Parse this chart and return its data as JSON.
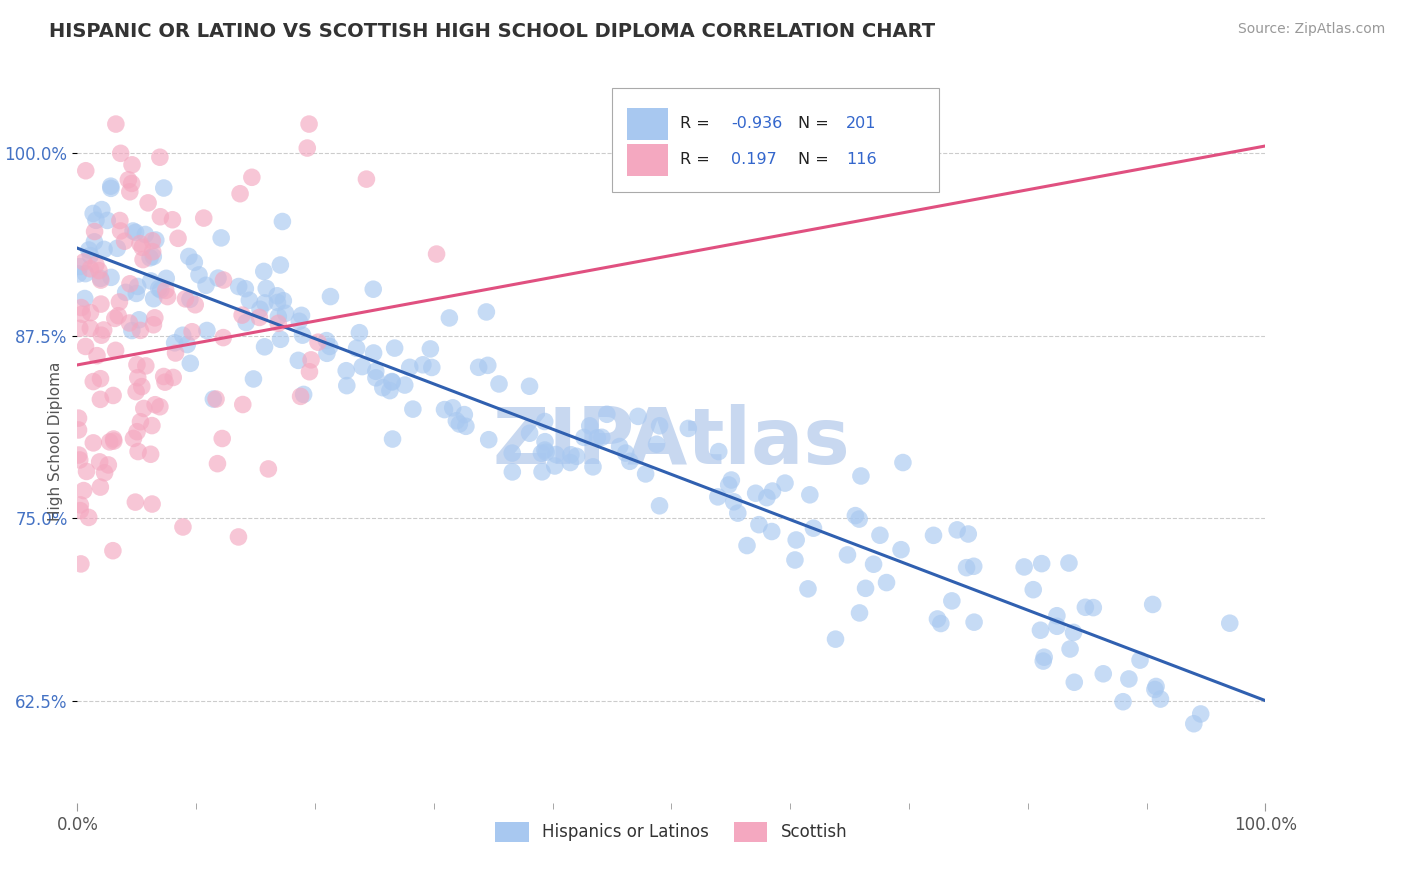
{
  "title": "HISPANIC OR LATINO VS SCOTTISH HIGH SCHOOL DIPLOMA CORRELATION CHART",
  "source": "Source: ZipAtlas.com",
  "ylabel": "High School Diploma",
  "xlim": [
    0.0,
    1.0
  ],
  "ylim": [
    0.555,
    1.05
  ],
  "yticks": [
    0.625,
    0.75,
    0.875,
    1.0
  ],
  "ytick_labels": [
    "62.5%",
    "75.0%",
    "87.5%",
    "100.0%"
  ],
  "xticks": [
    0.0,
    1.0
  ],
  "xtick_labels": [
    "0.0%",
    "100.0%"
  ],
  "blue_color": "#A8C8F0",
  "pink_color": "#F4A8C0",
  "blue_line_color": "#3060B0",
  "pink_line_color": "#E05080",
  "R_blue": -0.936,
  "N_blue": 201,
  "R_pink": 0.197,
  "N_pink": 116,
  "watermark": "ZIPAtlas",
  "watermark_color": "#C8D8F0",
  "grid_color": "#CCCCCC",
  "title_fontsize": 14,
  "blue_line_x0": 0.0,
  "blue_line_y0": 0.935,
  "blue_line_x1": 1.0,
  "blue_line_y1": 0.625,
  "pink_line_x0": 0.0,
  "pink_line_y0": 0.855,
  "pink_line_x1": 1.0,
  "pink_line_y1": 1.005
}
